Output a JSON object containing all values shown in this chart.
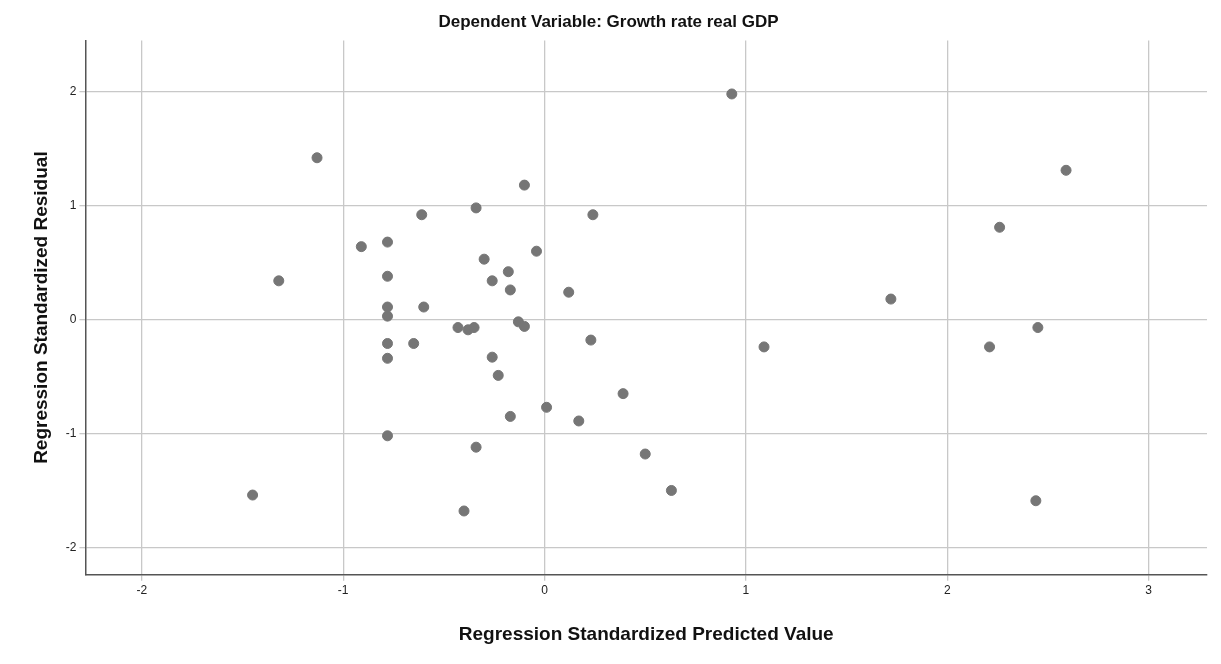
{
  "chart_data": {
    "type": "scatter",
    "title": "Dependent Variable: Growth rate real GDP",
    "xlabel": "Regression Standardized Predicted Value",
    "ylabel": "Regression Standardized Residual",
    "xlim": [
      -2.28,
      3.29
    ],
    "ylim": [
      -2.24,
      2.45
    ],
    "xticks": [
      -2,
      -1,
      0,
      1,
      2,
      3
    ],
    "yticks": [
      -2,
      -1,
      0,
      1,
      2
    ],
    "grid": true,
    "marker": "circle",
    "series": [
      {
        "color": "#767676",
        "x": [
          0.93,
          -1.13,
          2.59,
          -0.1,
          -0.34,
          -0.61,
          0.24,
          2.26,
          -0.91,
          -0.78,
          -0.3,
          -0.04,
          -0.18,
          -1.32,
          -0.78,
          -0.26,
          -0.17,
          0.12,
          1.72,
          -0.78,
          -0.6,
          -0.78,
          -0.43,
          -0.38,
          -0.35,
          -0.13,
          -0.1,
          2.45,
          -0.65,
          -0.78,
          0.23,
          1.09,
          2.21,
          -0.78,
          -0.26,
          -0.23,
          0.39,
          0.01,
          -0.17,
          0.17,
          -0.78,
          -0.34,
          0.5,
          0.63,
          -1.45,
          2.44,
          -0.4
        ],
        "values": [
          1.98,
          1.42,
          1.31,
          1.18,
          0.98,
          0.92,
          0.92,
          0.81,
          0.64,
          0.68,
          0.53,
          0.6,
          0.42,
          0.34,
          0.38,
          0.34,
          0.26,
          0.24,
          0.18,
          0.11,
          0.11,
          0.03,
          -0.07,
          -0.09,
          -0.07,
          -0.02,
          -0.06,
          -0.07,
          -0.21,
          -0.21,
          -0.18,
          -0.24,
          -0.24,
          -0.34,
          -0.33,
          -0.49,
          -0.65,
          -0.77,
          -0.85,
          -0.89,
          -1.02,
          -1.12,
          -1.18,
          -1.5,
          -1.54,
          -1.59,
          -1.68
        ]
      }
    ]
  }
}
